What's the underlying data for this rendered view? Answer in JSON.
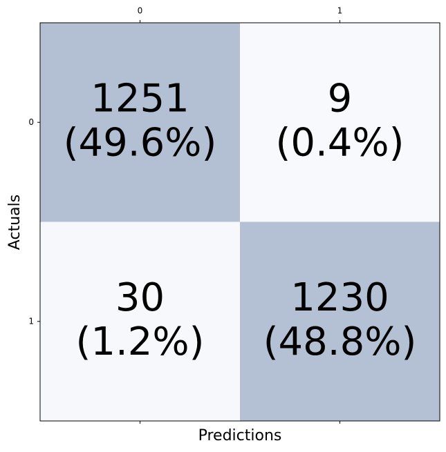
{
  "chart_data": {
    "type": "heatmap",
    "x_categories": [
      "0",
      "1"
    ],
    "y_categories": [
      "0",
      "1"
    ],
    "x_label": "Predictions",
    "y_label": "Actuals",
    "values": [
      [
        1251,
        9
      ],
      [
        30,
        1230
      ]
    ],
    "percents": [
      [
        49.6,
        0.4
      ],
      [
        1.2,
        48.8
      ]
    ],
    "percent_labels": [
      [
        "(49.6%)",
        "(0.4%)"
      ],
      [
        "(1.2%)",
        "(48.8%)"
      ]
    ],
    "colormap": [
      "#f7f9fd",
      "#b3c0d3"
    ]
  }
}
